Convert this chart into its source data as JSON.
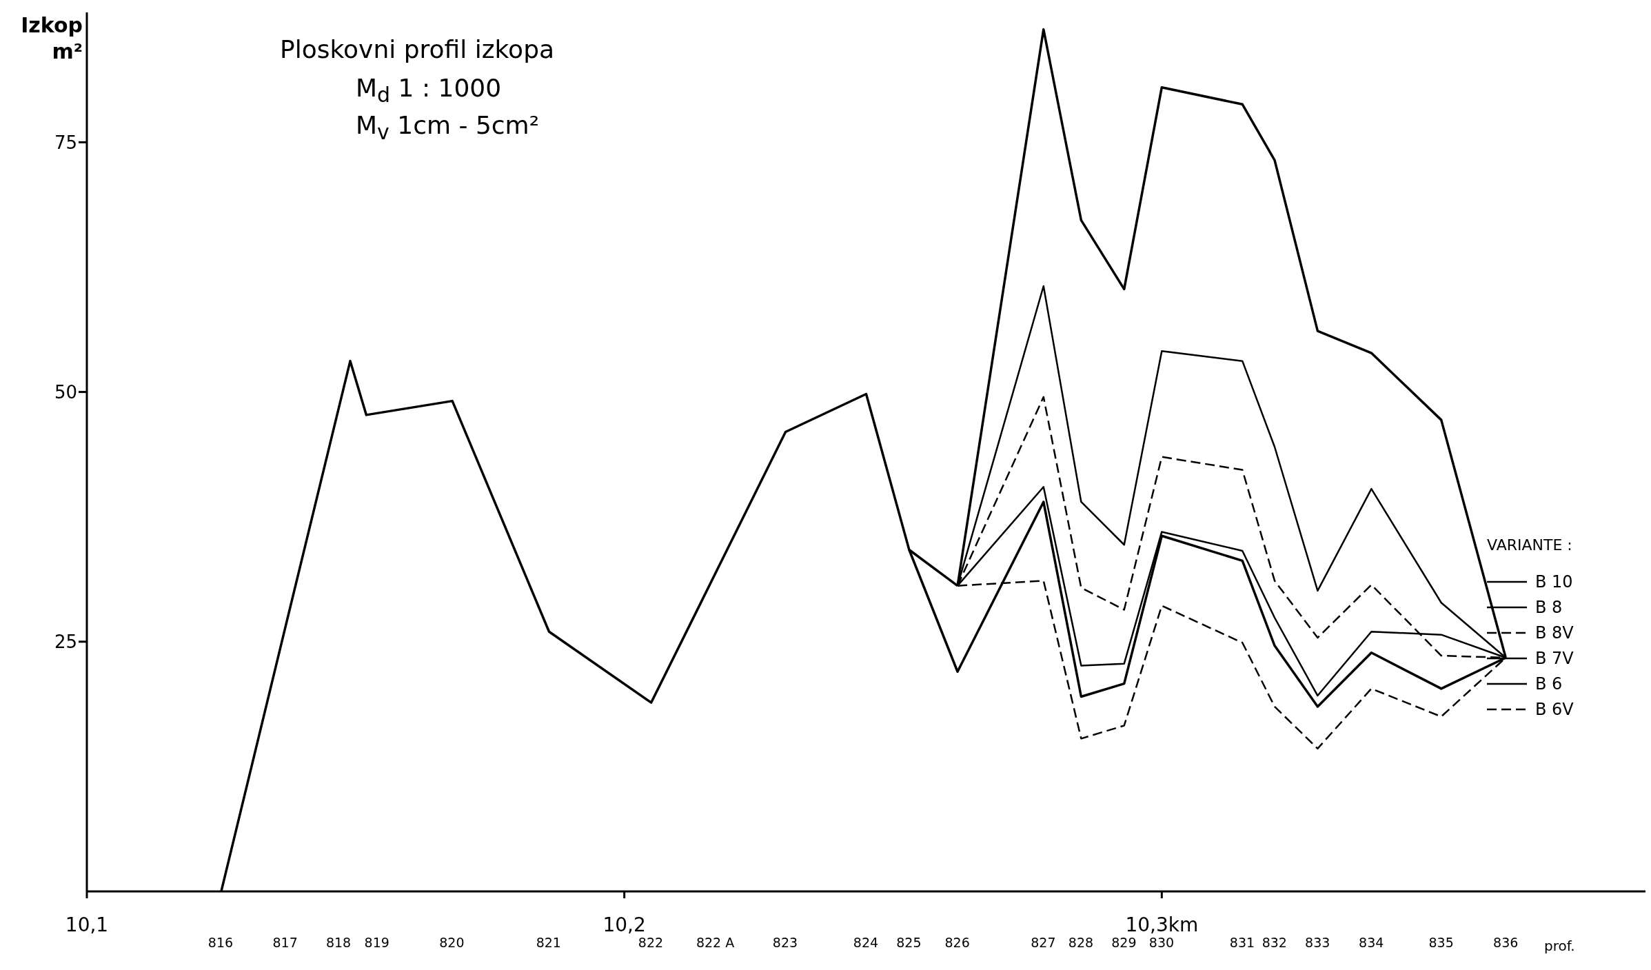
{
  "chart_data": {
    "type": "line",
    "title": "Ploskovni profil izkopa",
    "subtitle": "M$_{d}$  1 : 1000\nM$_{v}$  1cm - 5cm²",
    "annotations": [
      "816",
      "817",
      "818",
      "819",
      "820",
      "821",
      "822",
      "822 A",
      "823",
      "824",
      "825",
      "826",
      "827",
      "828",
      "829",
      "830",
      "831",
      "832",
      "833",
      "834",
      "835",
      "836"
    ],
    "ylabel": "Izkop m²",
    "xlabel": "prof.",
    "legend_title": "VARIANTE :",
    "xlim": [
      10.1,
      10.39
    ],
    "ylim": [
      0,
      88
    ],
    "yticks": [
      25,
      50,
      75
    ],
    "xticks": [
      {
        "value": 10.1,
        "label": "10,1"
      },
      {
        "value": 10.2,
        "label": "10,2"
      },
      {
        "value": 10.3,
        "label": "10,3km"
      }
    ],
    "grid": false,
    "legend": "right",
    "marker": "none",
    "series": [
      {
        "color": "#000000",
        "x": [
          10.125,
          10.137,
          10.149,
          10.152,
          10.168,
          10.186,
          10.205,
          10.217,
          10.23,
          10.245,
          10.253,
          10.262
        ],
        "values": [
          0,
          26.6,
          53.1,
          47.7,
          49.1,
          26.0,
          18.9,
          31.9,
          46.0,
          49.8,
          34.2,
          30.6
        ]
      },
      {
        "name": "B 10",
        "color": "#000000",
        "x": [
          10.262,
          10.278,
          10.285,
          10.293,
          10.3,
          10.315,
          10.321,
          10.329,
          10.339,
          10.352,
          10.364
        ],
        "values": [
          30.6,
          86.3,
          67.2,
          60.3,
          80.5,
          78.8,
          73.2,
          56.1,
          53.9,
          47.2,
          23.4
        ]
      },
      {
        "name": "B 8",
        "color": "#000000",
        "x": [
          10.262,
          10.278,
          10.285,
          10.293,
          10.3,
          10.315,
          10.321,
          10.329,
          10.339,
          10.352,
          10.364
        ],
        "values": [
          30.6,
          60.6,
          39.0,
          34.7,
          54.1,
          53.1,
          44.5,
          30.1,
          40.3,
          28.9,
          23.4
        ]
      },
      {
        "name": "B 8V",
        "color": "#000000",
        "line_style": "dashed",
        "x": [
          10.262,
          10.278,
          10.285,
          10.293,
          10.3,
          10.315,
          10.321,
          10.329,
          10.339,
          10.352,
          10.364
        ],
        "values": [
          30.6,
          49.5,
          30.4,
          28.2,
          43.5,
          42.2,
          31.1,
          25.4,
          30.7,
          23.6,
          23.4
        ]
      },
      {
        "name": "B 7V",
        "color": "#000000",
        "x": [
          10.262,
          10.278,
          10.285,
          10.293,
          10.3,
          10.315,
          10.321,
          10.329,
          10.339,
          10.352,
          10.364
        ],
        "values": [
          30.6,
          40.5,
          22.6,
          22.8,
          36.0,
          34.1,
          27.4,
          19.6,
          26.0,
          25.7,
          23.4
        ]
      },
      {
        "name": "B 6",
        "color": "#000000",
        "x": [
          10.253,
          10.262,
          10.278,
          10.285,
          10.293,
          10.3,
          10.315,
          10.321,
          10.329,
          10.339,
          10.352,
          10.364
        ],
        "values": [
          34.2,
          22.0,
          39.0,
          19.5,
          20.8,
          35.6,
          33.1,
          24.6,
          18.5,
          23.9,
          20.3,
          23.4
        ]
      },
      {
        "name": "B 6V",
        "color": "#000000",
        "line_style": "dashed",
        "x": [
          10.262,
          10.278,
          10.285,
          10.293,
          10.3,
          10.315,
          10.321,
          10.329,
          10.339,
          10.352,
          10.364
        ],
        "values": [
          30.6,
          31.1,
          15.3,
          16.6,
          28.6,
          24.9,
          18.5,
          14.3,
          20.3,
          17.5,
          23.4
        ]
      }
    ]
  }
}
